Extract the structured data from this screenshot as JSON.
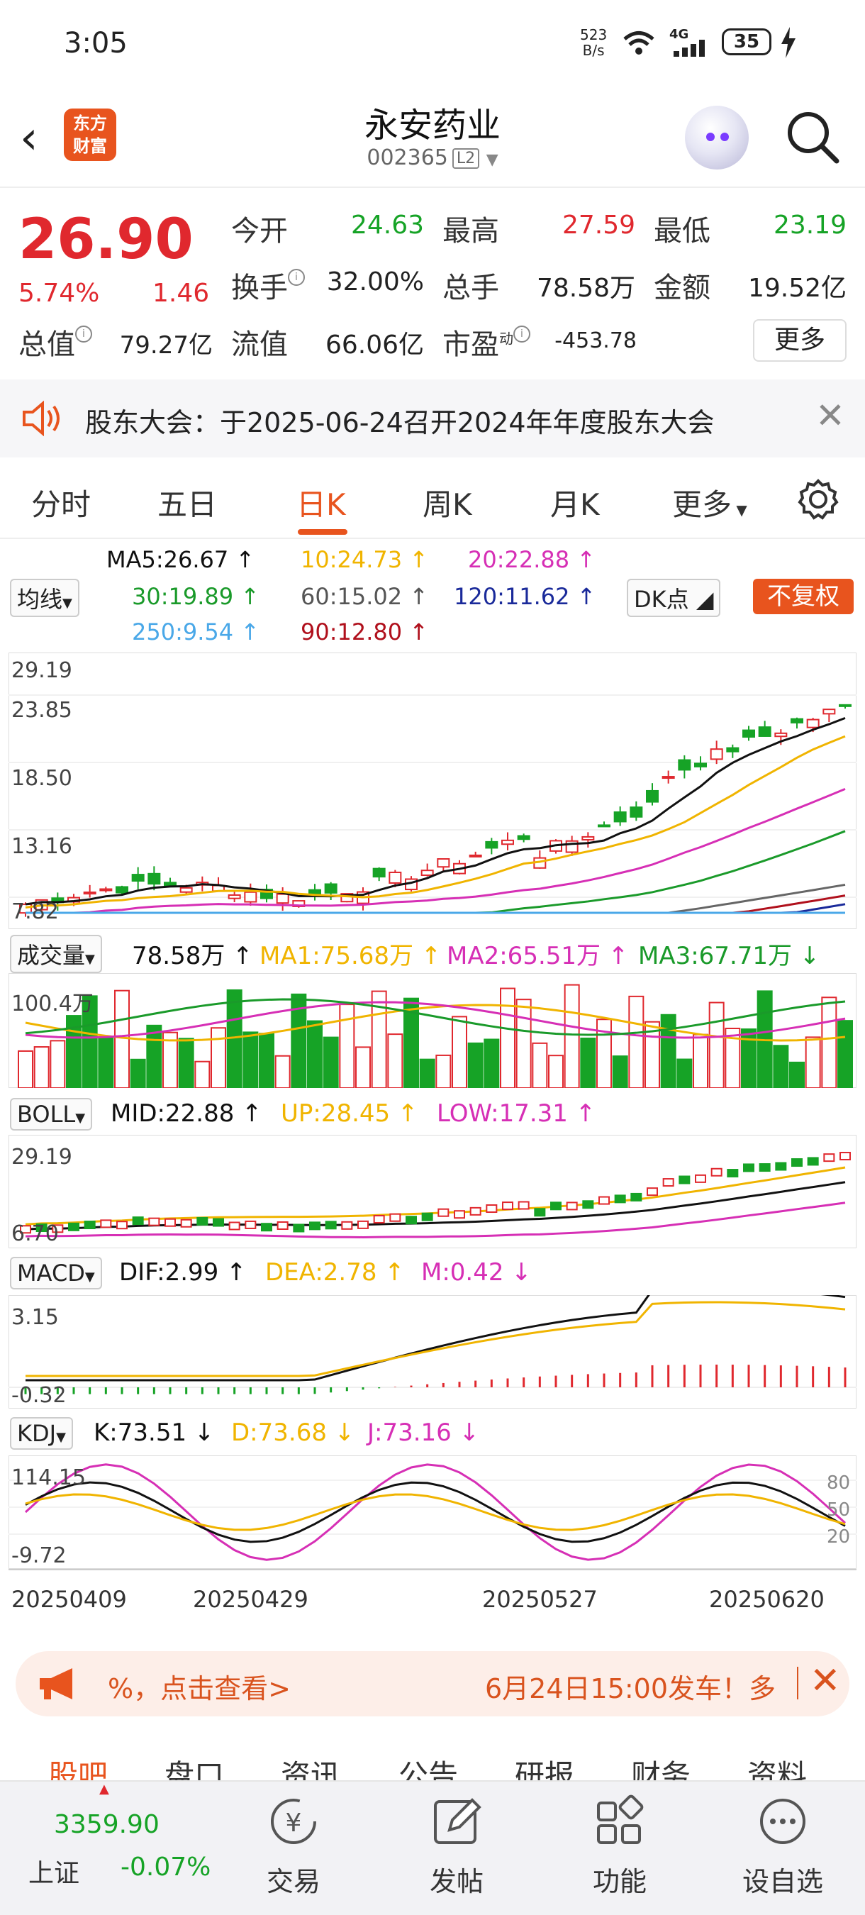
{
  "status": {
    "time": "3:05",
    "net_speed_top": "523",
    "net_speed_bottom": "B/s",
    "network": "4G",
    "battery": "35"
  },
  "header": {
    "logo_line1": "东方",
    "logo_line2": "财富",
    "stock_name": "永安药业",
    "stock_code": "002365",
    "level": "L2"
  },
  "quote": {
    "price": "26.90",
    "change_pct": "5.74%",
    "change_abs": "1.46",
    "open_label": "今开",
    "open": "24.63",
    "high_label": "最高",
    "high": "27.59",
    "low_label": "最低",
    "low": "23.19",
    "turnover_label": "换手",
    "turnover": "32.00%",
    "volume_label": "总手",
    "volume": "78.58万",
    "amount_label": "金额",
    "amount": "19.52亿",
    "mktcap_label": "总值",
    "mktcap": "79.27亿",
    "float_label": "流值",
    "float": "66.06亿",
    "pe_label": "市盈",
    "pe_sup": "动",
    "pe": "-453.78",
    "more": "更多"
  },
  "notice": {
    "text": "股东大会：于2025-06-24召开2024年年度股东大会"
  },
  "tabs": [
    "分时",
    "五日",
    "日K",
    "周K",
    "月K",
    "更多"
  ],
  "active_tab": 2,
  "ma": {
    "selector": "均线",
    "ma5": "MA5:26.67",
    "ma10": "10:24.73",
    "ma20": "20:22.88",
    "ma30": "30:19.89",
    "ma60": "60:15.02",
    "ma120": "120:11.62",
    "ma250": "250:9.54",
    "ma90": "90:12.80",
    "dk": "DK点",
    "fq": "不复权"
  },
  "kline_axis": [
    "29.19",
    "23.85",
    "18.50",
    "13.16",
    "7.82"
  ],
  "volume": {
    "selector": "成交量",
    "value": "78.58万",
    "ma1": "MA1:75.68万",
    "ma2": "MA2:65.51万",
    "ma3": "MA3:67.71万",
    "axis_top": "100.4万"
  },
  "boll": {
    "selector": "BOLL",
    "mid": "MID:22.88",
    "up": "UP:28.45",
    "low": "LOW:17.31",
    "axis_top": "29.19",
    "axis_bottom": "6.70"
  },
  "macd": {
    "selector": "MACD",
    "dif": "DIF:2.99",
    "dea": "DEA:2.78",
    "m": "M:0.42",
    "axis_top": "3.15",
    "axis_bottom": "-0.32"
  },
  "kdj": {
    "selector": "KDJ",
    "k": "K:73.51",
    "d": "D:73.68",
    "j": "J:73.16",
    "axis_top": "114.15",
    "axis_bottom": "-9.72",
    "levels": [
      "80",
      "50",
      "20"
    ]
  },
  "dates": [
    "20250409",
    "20250429",
    "20250527",
    "20250620"
  ],
  "banner": {
    "left": "%，点击查看>",
    "right": "6月24日15:00发车！多"
  },
  "subtabs": [
    "股吧",
    "盘口",
    "资讯",
    "公告",
    "研报",
    "财务",
    "资料"
  ],
  "bottom": {
    "index_value": "3359.90",
    "index_name": "上证",
    "index_change": "-0.07%",
    "items": [
      "交易",
      "发帖",
      "功能",
      "设自选"
    ]
  },
  "colors": {
    "up": "#e0282e",
    "down": "#16a326",
    "accent": "#e8541e",
    "ma5": "#111111",
    "ma10": "#f0b400",
    "ma20": "#d62fb5",
    "ma30": "#1a9a2a",
    "ma60": "#666666",
    "ma120": "#1a2a9a",
    "ma250": "#4aa8e8",
    "ma90": "#b0101c"
  }
}
